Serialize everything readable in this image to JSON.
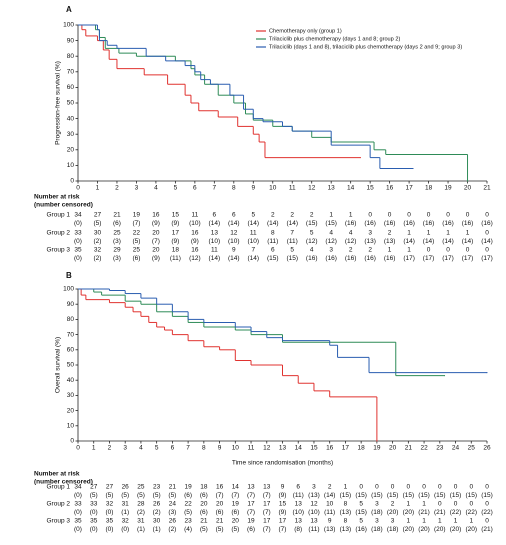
{
  "chart_data": [
    {
      "type": "step",
      "panel": "A",
      "ylabel": "Progression-free survival (%)",
      "xlim": [
        0,
        21
      ],
      "ylim": [
        0,
        100
      ],
      "xticks": [
        0,
        1,
        2,
        3,
        4,
        5,
        6,
        7,
        8,
        9,
        10,
        11,
        12,
        13,
        14,
        15,
        16,
        17,
        18,
        19,
        20,
        21
      ],
      "yticks": [
        0,
        10,
        20,
        30,
        40,
        50,
        60,
        70,
        80,
        90,
        100
      ],
      "series": [
        {
          "name": "Chemotherapy only (group 1)",
          "color": "#e0322f",
          "x": [
            0,
            0.2,
            0.4,
            1.0,
            1.3,
            1.6,
            2.0,
            3.4,
            4.6,
            5.5,
            5.8,
            6.2,
            7.2,
            8.2,
            9.0,
            9.3,
            9.6,
            14.5
          ],
          "values": [
            100,
            97,
            93,
            90,
            84,
            78,
            72,
            68,
            62,
            55,
            50,
            45,
            41,
            35,
            30,
            25,
            15,
            15
          ]
        },
        {
          "name": "Trilaciclib plus chemotherapy (days 1 and 8; group 2)",
          "color": "#2e8b57",
          "x": [
            0,
            0.9,
            1.1,
            1.4,
            2.1,
            3.0,
            5.0,
            5.8,
            6.0,
            6.5,
            7.2,
            8.0,
            8.6,
            9.0,
            10.0,
            11.0,
            12.0,
            13.0,
            15.2,
            15.8,
            20.0
          ],
          "values": [
            100,
            97,
            92,
            85,
            82,
            80,
            77,
            72,
            68,
            62,
            55,
            50,
            43,
            39,
            35,
            32,
            28,
            25,
            20,
            17,
            0
          ]
        },
        {
          "name": "Trilaciclib (days 1 and 8), trilaciclib plus chemotherapy (days 2 and 9; group 3)",
          "color": "#2a5db0",
          "x": [
            0,
            1.0,
            1.1,
            1.5,
            2.0,
            3.5,
            4.5,
            5.5,
            6.0,
            6.3,
            6.8,
            7.8,
            8.5,
            9.0,
            9.5,
            10.5,
            11.0,
            13.0,
            15.0,
            15.5,
            17.2
          ],
          "values": [
            100,
            97,
            90,
            87,
            85,
            80,
            77,
            74,
            70,
            65,
            62,
            55,
            46,
            40,
            38,
            35,
            32,
            23,
            15,
            8,
            8
          ]
        }
      ],
      "risk_title": "Number at risk",
      "risk_subtitle": "(number censored)",
      "risk_table": [
        {
          "name": "Group 1",
          "at_risk": [
            34,
            27,
            21,
            19,
            16,
            15,
            11,
            6,
            6,
            5,
            2,
            2,
            2,
            1,
            1,
            0,
            0,
            0,
            0,
            0,
            0,
            0
          ],
          "censored": [
            "(0)",
            "(5)",
            "(6)",
            "(7)",
            "(9)",
            "(9)",
            "(10)",
            "(14)",
            "(14)",
            "(14)",
            "(14)",
            "(14)",
            "(15)",
            "(15)",
            "(16)",
            "(16)",
            "(16)",
            "(16)",
            "(16)",
            "(16)",
            "(16)",
            "(16)"
          ]
        },
        {
          "name": "Group 2",
          "at_risk": [
            33,
            30,
            25,
            22,
            20,
            17,
            16,
            13,
            12,
            11,
            8,
            7,
            5,
            4,
            4,
            3,
            2,
            1,
            1,
            1,
            1,
            0
          ],
          "censored": [
            "(0)",
            "(2)",
            "(3)",
            "(5)",
            "(7)",
            "(9)",
            "(9)",
            "(10)",
            "(10)",
            "(10)",
            "(11)",
            "(11)",
            "(12)",
            "(12)",
            "(12)",
            "(13)",
            "(13)",
            "(14)",
            "(14)",
            "(14)",
            "(14)",
            "(14)"
          ]
        },
        {
          "name": "Group 3",
          "at_risk": [
            35,
            32,
            29,
            25,
            20,
            18,
            16,
            11,
            9,
            7,
            6,
            5,
            4,
            3,
            2,
            2,
            1,
            1,
            0,
            0,
            0,
            0
          ],
          "censored": [
            "(0)",
            "(2)",
            "(3)",
            "(6)",
            "(9)",
            "(11)",
            "(12)",
            "(14)",
            "(14)",
            "(14)",
            "(15)",
            "(15)",
            "(16)",
            "(16)",
            "(16)",
            "(16)",
            "(16)",
            "(17)",
            "(17)",
            "(17)",
            "(17)",
            "(17)"
          ]
        }
      ]
    },
    {
      "type": "step",
      "panel": "B",
      "ylabel": "Overall survival (%)",
      "xlabel": "Time since randomisation (months)",
      "xlim": [
        0,
        26
      ],
      "ylim": [
        0,
        100
      ],
      "xticks": [
        0,
        1,
        2,
        3,
        4,
        5,
        6,
        7,
        8,
        9,
        10,
        11,
        12,
        13,
        14,
        15,
        16,
        17,
        18,
        19,
        20,
        21,
        22,
        23,
        24,
        25,
        26
      ],
      "yticks": [
        0,
        10,
        20,
        30,
        40,
        50,
        60,
        70,
        80,
        90,
        100
      ],
      "series": [
        {
          "color": "#e0322f",
          "x": [
            0,
            0.2,
            0.5,
            2.0,
            3.0,
            3.5,
            4.0,
            4.5,
            5.0,
            5.5,
            6.0,
            7.0,
            8.0,
            9.0,
            10.0,
            11.0,
            13.0,
            14.0,
            15.0,
            16.0,
            19.0
          ],
          "values": [
            100,
            96,
            93,
            91,
            88,
            85,
            82,
            78,
            75,
            73,
            70,
            66,
            62,
            60,
            53,
            50,
            43,
            38,
            33,
            29,
            0
          ]
        },
        {
          "color": "#2e8b57",
          "x": [
            0,
            1.0,
            1.5,
            3.0,
            4.0,
            5.0,
            6.0,
            7.0,
            8.0,
            10.0,
            11.0,
            13.0,
            20.2,
            23.3
          ],
          "values": [
            100,
            98,
            96,
            92,
            90,
            85,
            82,
            78,
            75,
            73,
            70,
            65,
            43,
            43
          ]
        },
        {
          "color": "#2a5db0",
          "x": [
            0,
            2.0,
            3.0,
            4.0,
            5.0,
            6.0,
            7.0,
            8.0,
            10.0,
            11.0,
            12.0,
            13.0,
            16.0,
            16.5,
            18.5,
            26.0
          ],
          "values": [
            100,
            99,
            97,
            94,
            90,
            85,
            80,
            78,
            75,
            72,
            68,
            66,
            63,
            55,
            45,
            45
          ]
        }
      ],
      "risk_title": "Number at risk",
      "risk_subtitle": "(number censored)",
      "risk_table": [
        {
          "name": "Group 1",
          "at_risk": [
            34,
            27,
            27,
            26,
            25,
            23,
            21,
            19,
            18,
            16,
            14,
            13,
            13,
            9,
            6,
            3,
            2,
            1,
            0,
            0,
            0,
            0,
            0,
            0,
            0,
            0,
            0
          ],
          "censored": [
            "(0)",
            "(5)",
            "(5)",
            "(5)",
            "(5)",
            "(5)",
            "(5)",
            "(6)",
            "(6)",
            "(7)",
            "(7)",
            "(7)",
            "(7)",
            "(9)",
            "(11)",
            "(13)",
            "(14)",
            "(15)",
            "(15)",
            "(15)",
            "(15)",
            "(15)",
            "(15)",
            "(15)",
            "(15)",
            "(15)",
            "(15)"
          ]
        },
        {
          "name": "Group 2",
          "at_risk": [
            33,
            33,
            32,
            31,
            28,
            26,
            24,
            22,
            20,
            20,
            19,
            17,
            17,
            15,
            13,
            12,
            10,
            8,
            5,
            3,
            2,
            1,
            1,
            0,
            0,
            0,
            0
          ],
          "censored": [
            "(0)",
            "(0)",
            "(0)",
            "(1)",
            "(2)",
            "(2)",
            "(3)",
            "(5)",
            "(6)",
            "(6)",
            "(6)",
            "(7)",
            "(7)",
            "(9)",
            "(10)",
            "(10)",
            "(11)",
            "(13)",
            "(15)",
            "(18)",
            "(20)",
            "(20)",
            "(21)",
            "(21)",
            "(22)",
            "(22)",
            "(22)"
          ]
        },
        {
          "name": "Group 3",
          "at_risk": [
            35,
            35,
            35,
            32,
            31,
            30,
            26,
            23,
            21,
            21,
            20,
            19,
            17,
            17,
            13,
            13,
            9,
            8,
            5,
            3,
            3,
            1,
            1,
            1,
            1,
            1,
            0
          ],
          "censored": [
            "(0)",
            "(0)",
            "(0)",
            "(0)",
            "(1)",
            "(1)",
            "(2)",
            "(4)",
            "(5)",
            "(5)",
            "(5)",
            "(6)",
            "(7)",
            "(7)",
            "(8)",
            "(11)",
            "(13)",
            "(13)",
            "(16)",
            "(18)",
            "(18)",
            "(20)",
            "(20)",
            "(20)",
            "(20)",
            "(20)",
            "(21)"
          ]
        }
      ]
    }
  ]
}
